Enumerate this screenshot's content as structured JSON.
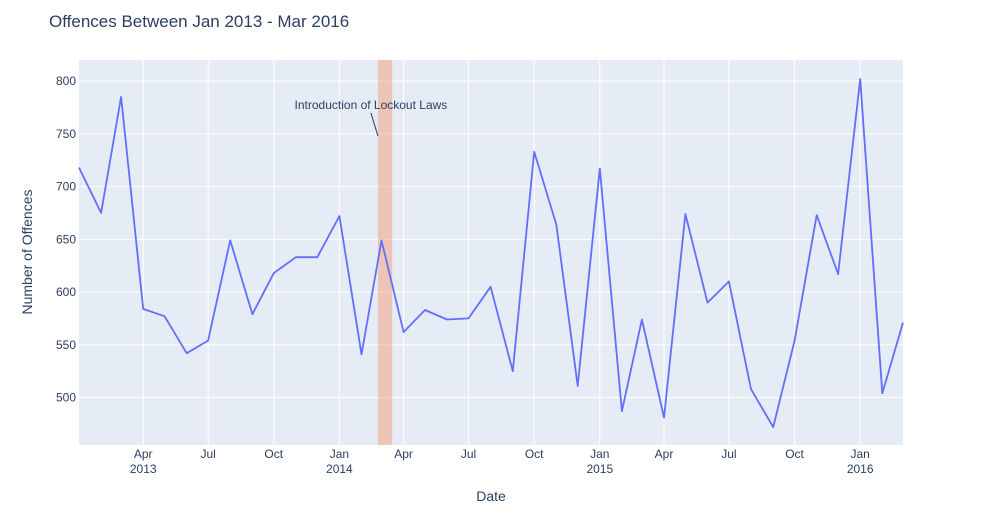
{
  "chart_data": {
    "type": "line",
    "title": "Offences Between Jan 2013 - Mar 2016",
    "xlabel": "Date",
    "ylabel": "Number of Offences",
    "xlim": [
      "2013-01-01",
      "2016-03-01"
    ],
    "ylim": [
      455,
      820
    ],
    "yticks": [
      500,
      550,
      600,
      650,
      700,
      750,
      800
    ],
    "xticks": [
      {
        "date": "2013-04-01",
        "label": "Apr",
        "year": "2013"
      },
      {
        "date": "2013-07-01",
        "label": "Jul",
        "year": ""
      },
      {
        "date": "2013-10-01",
        "label": "Oct",
        "year": ""
      },
      {
        "date": "2014-01-01",
        "label": "Jan",
        "year": "2014"
      },
      {
        "date": "2014-04-01",
        "label": "Apr",
        "year": ""
      },
      {
        "date": "2014-07-01",
        "label": "Jul",
        "year": ""
      },
      {
        "date": "2014-10-01",
        "label": "Oct",
        "year": ""
      },
      {
        "date": "2015-01-01",
        "label": "Jan",
        "year": "2015"
      },
      {
        "date": "2015-04-01",
        "label": "Apr",
        "year": ""
      },
      {
        "date": "2015-07-01",
        "label": "Jul",
        "year": ""
      },
      {
        "date": "2015-10-01",
        "label": "Oct",
        "year": ""
      },
      {
        "date": "2016-01-01",
        "label": "Jan",
        "year": "2016"
      }
    ],
    "grid": true,
    "series": [
      {
        "color": "#636efa",
        "x": [
          "2013-01-01",
          "2013-02-01",
          "2013-03-01",
          "2013-04-01",
          "2013-05-01",
          "2013-06-01",
          "2013-07-01",
          "2013-08-01",
          "2013-09-01",
          "2013-10-01",
          "2013-11-01",
          "2013-12-01",
          "2014-01-01",
          "2014-02-01",
          "2014-03-01",
          "2014-04-01",
          "2014-05-01",
          "2014-06-01",
          "2014-07-01",
          "2014-08-01",
          "2014-09-01",
          "2014-10-01",
          "2014-11-01",
          "2014-12-01",
          "2015-01-01",
          "2015-02-01",
          "2015-03-01",
          "2015-04-01",
          "2015-05-01",
          "2015-06-01",
          "2015-07-01",
          "2015-08-01",
          "2015-09-01",
          "2015-10-01",
          "2015-11-01",
          "2015-12-01",
          "2016-01-01",
          "2016-02-01",
          "2016-03-01"
        ],
        "values": [
          718,
          675,
          785,
          584,
          577,
          542,
          554,
          649,
          579,
          618,
          633,
          633,
          672,
          541,
          649,
          562,
          583,
          574,
          575,
          605,
          525,
          733,
          664,
          511,
          717,
          487,
          574,
          481,
          674,
          590,
          610,
          508,
          472,
          554,
          673,
          617,
          802,
          504,
          571
        ]
      }
    ],
    "highlight_band": {
      "x0": "2014-02-24",
      "x1": "2014-03-16",
      "color": "#f4a582"
    },
    "annotation": {
      "text": "Introduction of Lockout Laws",
      "x": "2014-02-24",
      "y": 748
    }
  }
}
